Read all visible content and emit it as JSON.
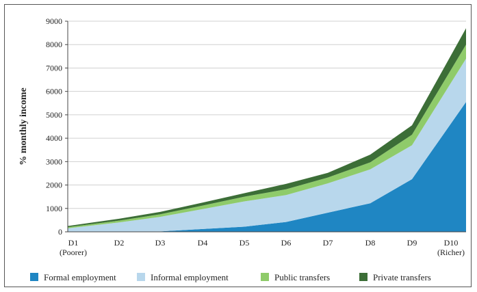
{
  "chart_data": {
    "type": "area",
    "stacked": true,
    "title": "",
    "xlabel": "",
    "ylabel": "% monthly income",
    "ylim": [
      0,
      9000
    ],
    "yticks": [
      0,
      1000,
      2000,
      3000,
      4000,
      5000,
      6000,
      7000,
      8000,
      9000
    ],
    "categories": [
      "D1",
      "D2",
      "D3",
      "D4",
      "D5",
      "D6",
      "D7",
      "D8",
      "D9",
      "D10"
    ],
    "category_sublabels": [
      "(Poorer)",
      "",
      "",
      "",
      "",
      "",
      "",
      "",
      "",
      "(Richer)"
    ],
    "grid": "horizontal",
    "legend_position": "bottom",
    "series": [
      {
        "name": "Formal employment",
        "color": "#1f86c3",
        "values": [
          0,
          0,
          20,
          120,
          220,
          420,
          820,
          1220,
          2250,
          5550
        ]
      },
      {
        "name": "Informal employment",
        "color": "#b8d7ec",
        "values": [
          150,
          400,
          620,
          850,
          1080,
          1150,
          1250,
          1450,
          1450,
          1850
        ]
      },
      {
        "name": "Public transfers",
        "color": "#8fcb6a",
        "values": [
          50,
          80,
          110,
          150,
          200,
          250,
          250,
          300,
          450,
          600
        ]
      },
      {
        "name": "Private transfers",
        "color": "#3c6e37",
        "values": [
          50,
          80,
          100,
          130,
          150,
          230,
          200,
          330,
          400,
          700
        ]
      }
    ]
  }
}
